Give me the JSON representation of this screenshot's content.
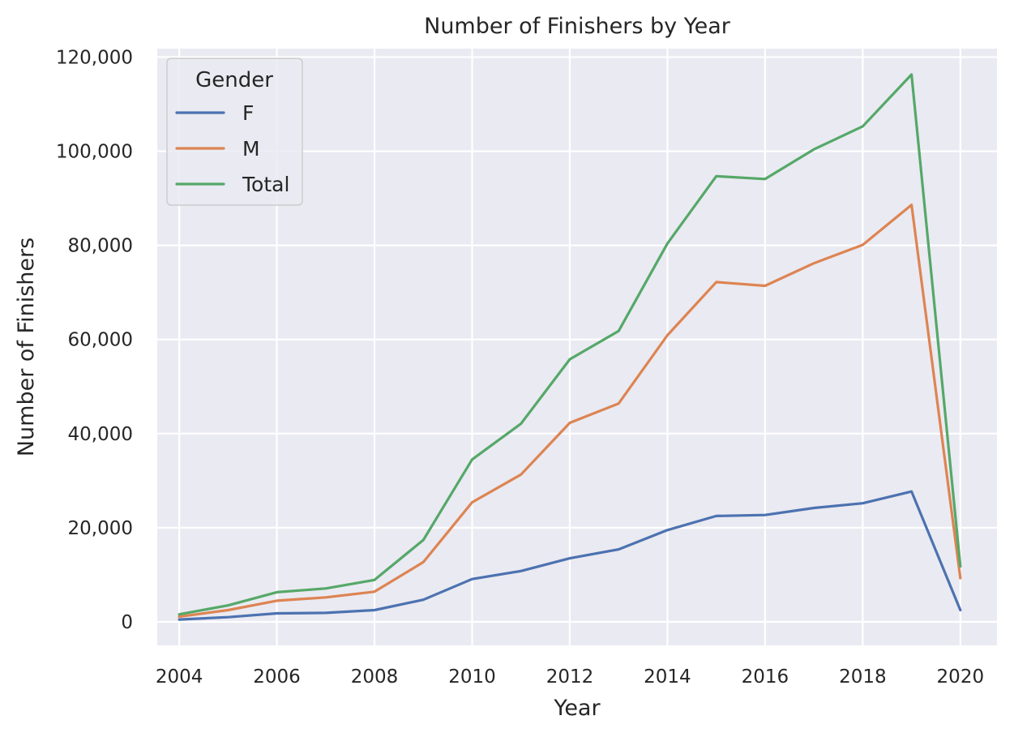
{
  "chart_data": {
    "type": "line",
    "title": "Number of Finishers by Year",
    "xlabel": "Year",
    "ylabel": "Number of Finishers",
    "x": [
      2004,
      2005,
      2006,
      2007,
      2008,
      2009,
      2010,
      2011,
      2012,
      2013,
      2014,
      2015,
      2016,
      2017,
      2018,
      2019,
      2020
    ],
    "xticks": [
      "2004",
      "2006",
      "2008",
      "2010",
      "2012",
      "2014",
      "2016",
      "2018",
      "2020"
    ],
    "yticks": [
      "0",
      "20,000",
      "40,000",
      "60,000",
      "80,000",
      "100,000",
      "120,000"
    ],
    "xlim": [
      2003.55,
      2020.75
    ],
    "ylim": [
      -5000,
      121800
    ],
    "grid": true,
    "legend": {
      "title": "Gender",
      "placement": "top-left"
    },
    "series": [
      {
        "name": "F",
        "color": "#4c72b0",
        "values": [
          500,
          1000,
          1800,
          1900,
          2500,
          4700,
          9100,
          10800,
          13500,
          15400,
          19500,
          22500,
          22700,
          24200,
          25200,
          27700,
          2500
        ]
      },
      {
        "name": "M",
        "color": "#dd8452",
        "values": [
          1100,
          2500,
          4500,
          5200,
          6400,
          12700,
          25400,
          31300,
          42300,
          46400,
          60900,
          72200,
          71400,
          76200,
          80100,
          88600,
          9300
        ]
      },
      {
        "name": "Total",
        "color": "#55a868",
        "values": [
          1600,
          3500,
          6300,
          7100,
          8900,
          17400,
          34500,
          42100,
          55800,
          61800,
          80400,
          94700,
          94100,
          100400,
          105300,
          116300,
          11800
        ]
      }
    ]
  }
}
